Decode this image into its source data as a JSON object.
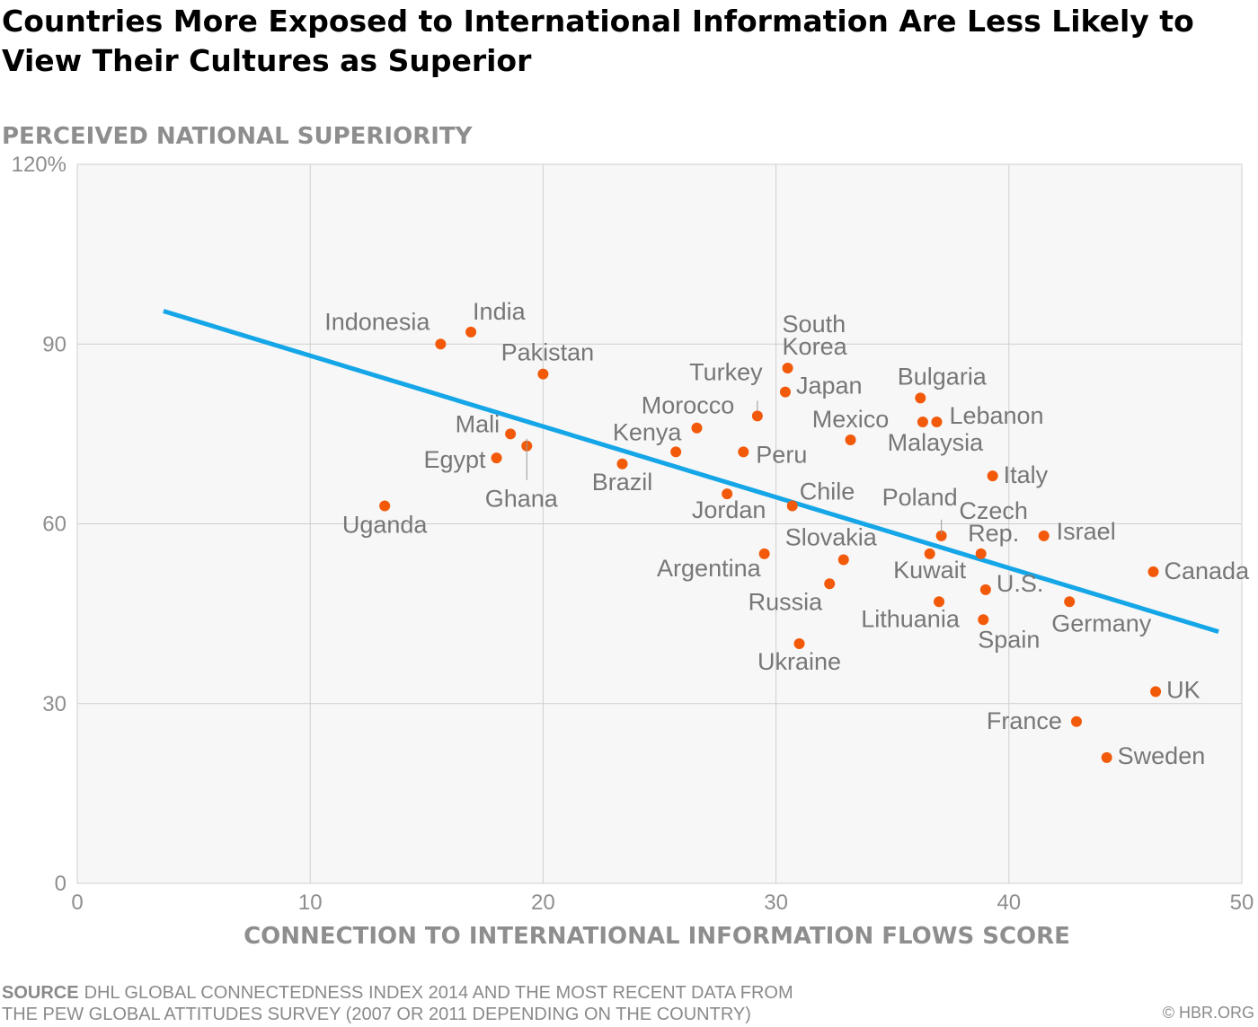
{
  "title": "Countries More Exposed to International Information Are Less Likely to View Their Cultures as Superior",
  "source_label": "SOURCE",
  "source_line1": "DHL GLOBAL CONNECTEDNESS INDEX 2014 AND THE MOST RECENT DATA FROM",
  "source_line2": "THE PEW GLOBAL ATTITUDES SURVEY (2007 OR 2011 DEPENDING ON THE COUNTRY)",
  "credit": "© HBR.ORG",
  "colors": {
    "point": "#f25a0a",
    "trend": "#15a6e8",
    "panel": "#f7f7f7",
    "grid": "#cfcfcf",
    "label": "#777777",
    "axis_title": "#8e8e8e"
  },
  "chart_data": {
    "type": "scatter",
    "xlabel": "CONNECTION TO INTERNATIONAL INFORMATION FLOWS SCORE",
    "ylabel": "PERCEIVED NATIONAL SUPERIORITY",
    "xlim": [
      0,
      50
    ],
    "ylim": [
      0,
      120
    ],
    "x_ticks": [
      0,
      10,
      20,
      30,
      40,
      50
    ],
    "y_ticks": [
      0,
      30,
      60,
      90,
      120
    ],
    "y_tick_labels": [
      "0",
      "30",
      "60",
      "90",
      "120%"
    ],
    "grid": true,
    "trend_line": {
      "x": [
        3.7,
        49.0
      ],
      "y": [
        95.5,
        42.0
      ]
    },
    "points": [
      {
        "name": "Indonesia",
        "x": 15.6,
        "y": 90
      },
      {
        "name": "India",
        "x": 16.9,
        "y": 92
      },
      {
        "name": "Pakistan",
        "x": 20.0,
        "y": 85
      },
      {
        "name": "Mali",
        "x": 18.6,
        "y": 75
      },
      {
        "name": "Egypt",
        "x": 18.0,
        "y": 71
      },
      {
        "name": "Ghana",
        "x": 19.3,
        "y": 73
      },
      {
        "name": "Uganda",
        "x": 13.2,
        "y": 63
      },
      {
        "name": "Brazil",
        "x": 23.4,
        "y": 70
      },
      {
        "name": "Kenya",
        "x": 25.7,
        "y": 72
      },
      {
        "name": "Morocco",
        "x": 26.6,
        "y": 76
      },
      {
        "name": "Turkey",
        "x": 29.2,
        "y": 78
      },
      {
        "name": "Peru",
        "x": 28.6,
        "y": 72
      },
      {
        "name": "Jordan",
        "x": 27.9,
        "y": 65
      },
      {
        "name": "South Korea",
        "x": 30.5,
        "y": 86
      },
      {
        "name": "Japan",
        "x": 30.4,
        "y": 82
      },
      {
        "name": "Chile",
        "x": 30.7,
        "y": 63
      },
      {
        "name": "Argentina",
        "x": 29.5,
        "y": 55
      },
      {
        "name": "Slovakia",
        "x": 32.9,
        "y": 54
      },
      {
        "name": "Russia",
        "x": 32.3,
        "y": 50
      },
      {
        "name": "Ukraine",
        "x": 31.0,
        "y": 40
      },
      {
        "name": "Mexico",
        "x": 33.2,
        "y": 74
      },
      {
        "name": "Bulgaria",
        "x": 36.2,
        "y": 81
      },
      {
        "name": "Malaysia",
        "x": 36.3,
        "y": 77
      },
      {
        "name": "Lebanon",
        "x": 36.9,
        "y": 77
      },
      {
        "name": "Poland",
        "x": 37.1,
        "y": 58
      },
      {
        "name": "Kuwait",
        "x": 36.6,
        "y": 55
      },
      {
        "name": "Lithuania",
        "x": 37.0,
        "y": 47
      },
      {
        "name": "Czech Rep.",
        "x": 38.8,
        "y": 55
      },
      {
        "name": "Italy",
        "x": 39.3,
        "y": 68
      },
      {
        "name": "Israel",
        "x": 41.5,
        "y": 58
      },
      {
        "name": "U.S.",
        "x": 39.0,
        "y": 49
      },
      {
        "name": "Spain",
        "x": 38.9,
        "y": 44
      },
      {
        "name": "Germany",
        "x": 42.6,
        "y": 47
      },
      {
        "name": "Canada",
        "x": 46.2,
        "y": 52
      },
      {
        "name": "UK",
        "x": 46.3,
        "y": 32
      },
      {
        "name": "France",
        "x": 42.9,
        "y": 27
      },
      {
        "name": "Sweden",
        "x": 44.2,
        "y": 21
      }
    ]
  }
}
